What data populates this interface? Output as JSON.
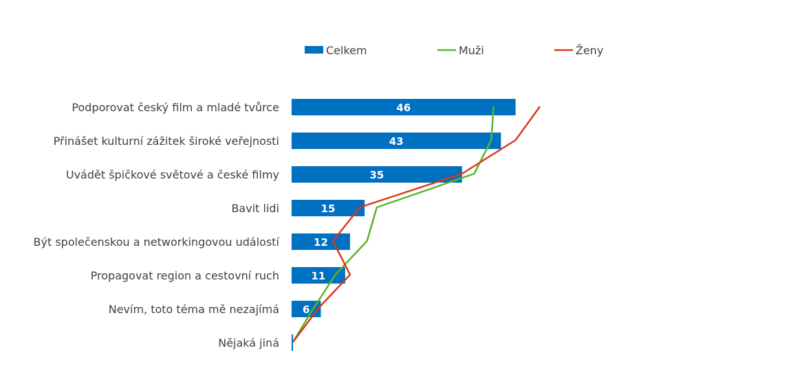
{
  "chart_data": {
    "type": "bar",
    "orientation": "horizontal",
    "categories": [
      "Podporovat český film a mladé tvůrce",
      "Přinášet kulturní zážitek široké veřejnosti",
      "Uvádět špičkové světové a české filmy",
      "Bavit lidi",
      "Být společenskou a networkingovou událostí",
      "Propagovat region a cestovní ruch",
      "Nevím, toto téma mě nezajímá",
      "Nějaká jiná"
    ],
    "series": [
      {
        "name": "Celkem",
        "kind": "bar",
        "color": "#0070C0",
        "values": [
          46,
          43,
          35,
          15,
          12,
          11,
          6,
          0.3
        ]
      },
      {
        "name": "Muži",
        "kind": "line",
        "color": "#5AB52A",
        "values": [
          41.5,
          41,
          37.5,
          17.5,
          15.5,
          9,
          4.5,
          0.3
        ]
      },
      {
        "name": "Ženy",
        "kind": "line",
        "color": "#D9381E",
        "values": [
          51,
          46,
          35,
          14,
          8.5,
          12,
          5.5,
          0.3
        ]
      }
    ],
    "data_labels": [
      "46",
      "43",
      "35",
      "15",
      "12",
      "11",
      "6",
      ""
    ],
    "legend": {
      "position": "top",
      "items": [
        "Celkem",
        "Muži",
        "Ženy"
      ]
    },
    "xlim": [
      0,
      60
    ],
    "grid": false
  }
}
